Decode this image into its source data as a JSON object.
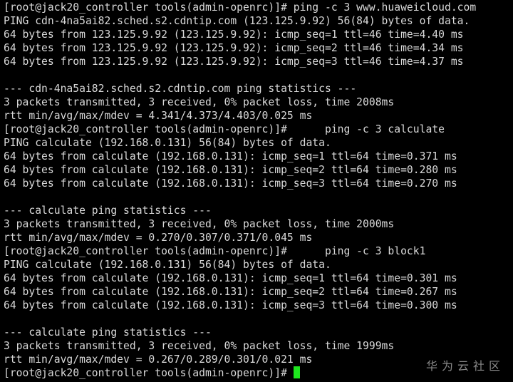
{
  "terminal": {
    "lines": [
      "[root@jack20_controller tools(admin-openrc)]# ping -c 3 www.huaweicloud.com",
      "PING cdn-4na5ai82.sched.s2.cdntip.com (123.125.9.92) 56(84) bytes of data.",
      "64 bytes from 123.125.9.92 (123.125.9.92): icmp_seq=1 ttl=46 time=4.40 ms",
      "64 bytes from 123.125.9.92 (123.125.9.92): icmp_seq=2 ttl=46 time=4.34 ms",
      "64 bytes from 123.125.9.92 (123.125.9.92): icmp_seq=3 ttl=46 time=4.37 ms",
      "",
      "--- cdn-4na5ai82.sched.s2.cdntip.com ping statistics ---",
      "3 packets transmitted, 3 received, 0% packet loss, time 2008ms",
      "rtt min/avg/max/mdev = 4.341/4.373/4.403/0.025 ms",
      "[root@jack20_controller tools(admin-openrc)]#      ping -c 3 calculate",
      "PING calculate (192.168.0.131) 56(84) bytes of data.",
      "64 bytes from calculate (192.168.0.131): icmp_seq=1 ttl=64 time=0.371 ms",
      "64 bytes from calculate (192.168.0.131): icmp_seq=2 ttl=64 time=0.280 ms",
      "64 bytes from calculate (192.168.0.131): icmp_seq=3 ttl=64 time=0.270 ms",
      "",
      "--- calculate ping statistics ---",
      "3 packets transmitted, 3 received, 0% packet loss, time 2000ms",
      "rtt min/avg/max/mdev = 0.270/0.307/0.371/0.045 ms",
      "[root@jack20_controller tools(admin-openrc)]#      ping -c 3 block1",
      "PING calculate (192.168.0.131) 56(84) bytes of data.",
      "64 bytes from calculate (192.168.0.131): icmp_seq=1 ttl=64 time=0.301 ms",
      "64 bytes from calculate (192.168.0.131): icmp_seq=2 ttl=64 time=0.267 ms",
      "64 bytes from calculate (192.168.0.131): icmp_seq=3 ttl=64 time=0.300 ms",
      "",
      "--- calculate ping statistics ---",
      "3 packets transmitted, 3 received, 0% packet loss, time 1999ms",
      "rtt min/avg/max/mdev = 0.267/0.289/0.301/0.021 ms"
    ],
    "prompt": "[root@jack20_controller tools(admin-openrc)]# ",
    "cursor_color": "#1ee61e"
  },
  "watermark": "华为云社区"
}
